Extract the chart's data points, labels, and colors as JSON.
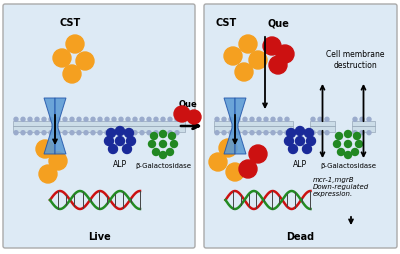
{
  "fig_width": 4.0,
  "fig_height": 2.55,
  "dpi": 100,
  "panel_bg": "#ddeaf5",
  "panel_border": "#aaaaaa",
  "cst_color": "#f5a020",
  "que_color": "#cc1111",
  "alp_color": "#1a2a99",
  "galac_color": "#228822",
  "channel_color": "#5b9bd5",
  "membrane_top": "#c8d8ea",
  "membrane_bot": "#b8c8da",
  "live_label": "Live",
  "dead_label": "Dead",
  "cst_label": "CST",
  "que_label": "Que",
  "alp_label": "ALP",
  "galac_label": "β-Galactosidase",
  "cell_mem_label": "Cell membrane\ndestruction",
  "mcr_label": "mcr-1,mgrB\nDown-regulated\nexpression."
}
